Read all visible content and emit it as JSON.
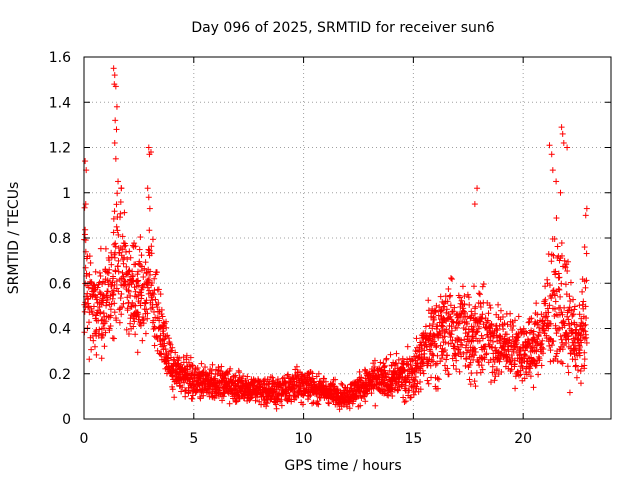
{
  "chart_data": {
    "type": "scatter",
    "title": "Day 096 of 2025, SRMTID for receiver sun6",
    "xlabel": "GPS time / hours",
    "ylabel": "SRMTID / TECUs",
    "xlim": [
      0,
      24
    ],
    "ylim": [
      0,
      1.6
    ],
    "xticks": [
      0,
      5,
      10,
      15,
      20
    ],
    "xtick_labels": [
      "0",
      "5",
      "10",
      "15",
      "20"
    ],
    "yticks": [
      0,
      0.2,
      0.4,
      0.6,
      0.8,
      1.0,
      1.2,
      1.4,
      1.6
    ],
    "ytick_labels": [
      "0",
      "0.2",
      "0.4",
      "0.6",
      "0.8",
      "1",
      "1.2",
      "1.4",
      "1.6"
    ],
    "grid": true,
    "marker": "plus",
    "color": "#ff0000",
    "envelope": {
      "hours": [
        0,
        0.5,
        1.0,
        1.5,
        2.0,
        2.5,
        3.0,
        3.5,
        4.0,
        5.0,
        6.0,
        7.0,
        8.0,
        9.0,
        10.0,
        11.0,
        12.0,
        13.0,
        14.0,
        15.0,
        15.5,
        16.0,
        17.0,
        18.0,
        19.0,
        20.0,
        20.5,
        21.0,
        21.5,
        22.0,
        22.5,
        22.9
      ],
      "mean": [
        0.62,
        0.45,
        0.55,
        0.72,
        0.6,
        0.55,
        0.58,
        0.4,
        0.22,
        0.17,
        0.16,
        0.14,
        0.13,
        0.12,
        0.16,
        0.12,
        0.1,
        0.16,
        0.18,
        0.2,
        0.3,
        0.38,
        0.4,
        0.38,
        0.33,
        0.3,
        0.32,
        0.4,
        0.55,
        0.45,
        0.32,
        0.45
      ],
      "spread": [
        0.25,
        0.18,
        0.22,
        0.28,
        0.22,
        0.2,
        0.22,
        0.12,
        0.08,
        0.07,
        0.07,
        0.06,
        0.06,
        0.06,
        0.07,
        0.05,
        0.05,
        0.07,
        0.08,
        0.1,
        0.14,
        0.18,
        0.18,
        0.18,
        0.14,
        0.12,
        0.14,
        0.16,
        0.28,
        0.22,
        0.14,
        0.22
      ]
    },
    "outliers": [
      {
        "x": 0.05,
        "y": 1.14
      },
      {
        "x": 0.1,
        "y": 1.1
      },
      {
        "x": 0.08,
        "y": 0.95
      },
      {
        "x": 1.35,
        "y": 1.55
      },
      {
        "x": 1.4,
        "y": 1.52
      },
      {
        "x": 1.38,
        "y": 1.48
      },
      {
        "x": 1.45,
        "y": 1.47
      },
      {
        "x": 1.5,
        "y": 1.38
      },
      {
        "x": 1.42,
        "y": 1.32
      },
      {
        "x": 1.48,
        "y": 1.28
      },
      {
        "x": 1.4,
        "y": 1.22
      },
      {
        "x": 1.45,
        "y": 1.15
      },
      {
        "x": 1.55,
        "y": 1.05
      },
      {
        "x": 1.7,
        "y": 1.02
      },
      {
        "x": 2.95,
        "y": 1.2
      },
      {
        "x": 2.98,
        "y": 1.17
      },
      {
        "x": 3.05,
        "y": 1.18
      },
      {
        "x": 2.9,
        "y": 1.02
      },
      {
        "x": 2.95,
        "y": 0.98
      },
      {
        "x": 3.0,
        "y": 0.93
      },
      {
        "x": 17.9,
        "y": 1.02
      },
      {
        "x": 17.8,
        "y": 0.95
      },
      {
        "x": 21.2,
        "y": 1.21
      },
      {
        "x": 21.3,
        "y": 1.17
      },
      {
        "x": 21.35,
        "y": 1.1
      },
      {
        "x": 21.75,
        "y": 1.29
      },
      {
        "x": 21.8,
        "y": 1.26
      },
      {
        "x": 21.85,
        "y": 1.22
      },
      {
        "x": 22.0,
        "y": 1.2
      },
      {
        "x": 21.5,
        "y": 1.05
      },
      {
        "x": 21.7,
        "y": 1.0
      },
      {
        "x": 22.9,
        "y": 0.93
      },
      {
        "x": 22.85,
        "y": 0.9
      },
      {
        "x": 22.8,
        "y": 0.76
      }
    ]
  }
}
